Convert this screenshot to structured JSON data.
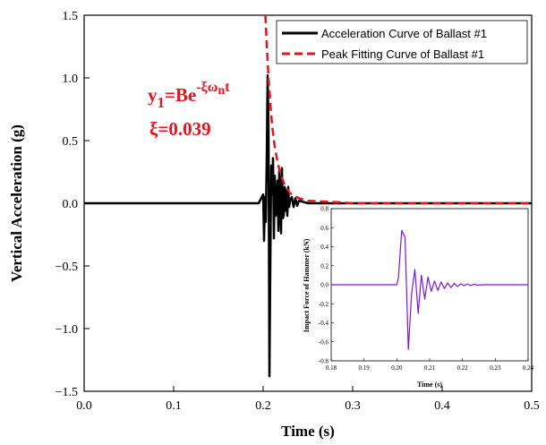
{
  "chart_data": [
    {
      "type": "line",
      "xlabel": "Time (s)",
      "ylabel": "Vertical Acceleration (g)",
      "xlim": [
        0.0,
        0.5
      ],
      "ylim": [
        -1.5,
        1.5
      ],
      "xticks": [
        "0.0",
        "0.1",
        "0.2",
        "0.3",
        "0.4",
        "0.5"
      ],
      "yticks": [
        "1.5",
        "1.0",
        "0.5",
        "0.0",
        "−0.5",
        "−1.0",
        "−1.5"
      ],
      "legend_position": "top-right",
      "colors": {
        "acceleration": "#000000",
        "fit": "#e8141c"
      },
      "series": [
        {
          "name": "Acceleration Curve of Ballast #1",
          "style": "solid",
          "x": [
            0.0,
            0.05,
            0.1,
            0.15,
            0.195,
            0.2,
            0.201,
            0.202,
            0.203,
            0.204,
            0.205,
            0.206,
            0.207,
            0.208,
            0.209,
            0.21,
            0.211,
            0.212,
            0.213,
            0.214,
            0.215,
            0.216,
            0.217,
            0.218,
            0.219,
            0.22,
            0.221,
            0.222,
            0.223,
            0.224,
            0.225,
            0.226,
            0.227,
            0.228,
            0.229,
            0.23,
            0.232,
            0.234,
            0.236,
            0.238,
            0.24,
            0.245,
            0.25,
            0.3,
            0.35,
            0.4,
            0.45,
            0.5
          ],
          "y": [
            0.0,
            0.0,
            0.0,
            0.0,
            0.0,
            0.07,
            -0.3,
            0.05,
            -0.15,
            0.35,
            1.02,
            0.6,
            -1.38,
            -0.5,
            0.3,
            0.07,
            0.36,
            -0.28,
            0.22,
            -0.1,
            0.0,
            0.18,
            -0.22,
            0.26,
            -0.02,
            -0.24,
            0.28,
            -0.12,
            -0.1,
            0.13,
            -0.06,
            0.11,
            -0.1,
            0.13,
            -0.03,
            0.02,
            0.05,
            -0.03,
            0.04,
            -0.02,
            0.02,
            0.01,
            0.0,
            0.0,
            0.0,
            0.0,
            0.0,
            0.0
          ]
        },
        {
          "name": "Peak Fitting  Curve of Ballast #1",
          "style": "dashed",
          "x": [
            0.2025,
            0.204,
            0.206,
            0.208,
            0.21,
            0.213,
            0.216,
            0.22,
            0.225,
            0.23,
            0.24,
            0.25,
            0.28,
            0.3,
            0.35,
            0.4,
            0.45,
            0.5
          ],
          "y": [
            1.5,
            1.27,
            1.0,
            0.8,
            0.62,
            0.45,
            0.33,
            0.22,
            0.13,
            0.08,
            0.04,
            0.02,
            0.01,
            0.0,
            0.0,
            0.0,
            0.0,
            0.0
          ]
        }
      ],
      "annotations": {
        "formula_base": "y",
        "formula_sub": "1",
        "formula_mid": "=Be",
        "formula_sup": "-ξω",
        "formula_sup_sub": "n",
        "formula_sup_end": "t",
        "xi": "ξ=0.039"
      }
    },
    {
      "type": "line",
      "xlabel": "Time (s)",
      "ylabel": "Impact Force of Hammer (kN)",
      "xlim": [
        0.18,
        0.24
      ],
      "ylim": [
        -0.8,
        0.8
      ],
      "xticks": [
        "0.18",
        "0.19",
        "0.20",
        "0.21",
        "0.22",
        "0.23",
        "0.24"
      ],
      "yticks": [
        "0.8",
        "0.6",
        "0.4",
        "0.2",
        "0.0",
        "-0.2",
        "-0.4",
        "-0.6",
        "-0.8"
      ],
      "colors": {
        "force": "#7b16e6"
      },
      "series": [
        {
          "x": [
            0.18,
            0.2,
            0.2005,
            0.2015,
            0.2025,
            0.2035,
            0.2045,
            0.2055,
            0.2065,
            0.2075,
            0.2085,
            0.2095,
            0.2105,
            0.2115,
            0.2125,
            0.2135,
            0.2145,
            0.2155,
            0.2165,
            0.2175,
            0.2185,
            0.2195,
            0.2205,
            0.2215,
            0.2225,
            0.2235,
            0.2245,
            0.2265,
            0.24
          ],
          "y": [
            0.0,
            0.0,
            0.08,
            0.57,
            0.5,
            -0.68,
            -0.1,
            0.16,
            -0.3,
            0.1,
            -0.15,
            0.08,
            -0.07,
            0.04,
            -0.06,
            0.03,
            -0.04,
            0.02,
            -0.03,
            0.015,
            -0.02,
            0.01,
            -0.01,
            0.008,
            -0.008,
            0.005,
            -0.004,
            0.0,
            0.0
          ]
        }
      ]
    }
  ]
}
